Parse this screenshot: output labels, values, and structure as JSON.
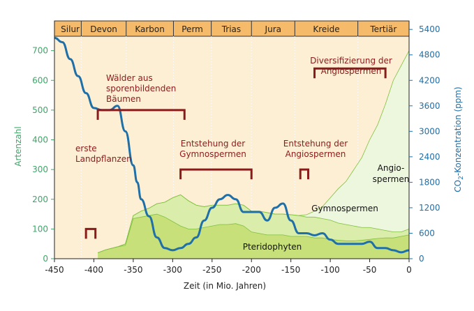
{
  "chart_data": {
    "type": "area",
    "x_axis": {
      "label": "Zeit (in Mio. Jahren)",
      "range": [
        -450,
        0
      ],
      "ticks": [
        -450,
        -400,
        -350,
        -300,
        -250,
        -200,
        -150,
        -100,
        -50,
        0
      ]
    },
    "y_left": {
      "label": "Artenzahl",
      "range": [
        0,
        800
      ],
      "ticks": [
        0,
        100,
        200,
        300,
        400,
        500,
        600,
        700
      ]
    },
    "y_right": {
      "label_main": "CO",
      "label_sub": "2",
      "label_rest": "-Konzentration (ppm)",
      "range": [
        0,
        5600
      ],
      "ticks": [
        0,
        600,
        1200,
        1800,
        2400,
        3000,
        3600,
        4200,
        4800,
        5400
      ]
    },
    "periods": [
      {
        "name": "Silur",
        "start": -444,
        "end": -416
      },
      {
        "name": "Devon",
        "start": -416,
        "end": -359
      },
      {
        "name": "Karbon",
        "start": -359,
        "end": -299
      },
      {
        "name": "Perm",
        "start": -299,
        "end": -251
      },
      {
        "name": "Trias",
        "start": -251,
        "end": -200
      },
      {
        "name": "Jura",
        "start": -200,
        "end": -145
      },
      {
        "name": "Kreide",
        "start": -145,
        "end": -65
      },
      {
        "name": "Tertiär",
        "start": -65,
        "end": 0
      }
    ],
    "series": [
      {
        "name": "Pteridophyten",
        "color": "#c8e07a",
        "x": [
          -395,
          -385,
          -370,
          -360,
          -350,
          -340,
          -330,
          -320,
          -310,
          -300,
          -290,
          -280,
          -270,
          -260,
          -250,
          -240,
          -230,
          -220,
          -210,
          -200,
          -190,
          -180,
          -170,
          -160,
          -150,
          -140,
          -130,
          -120,
          -110,
          -100,
          -90,
          -80,
          -70,
          -60,
          -50,
          -40,
          -30,
          -20,
          -10,
          0
        ],
        "values": [
          20,
          30,
          40,
          45,
          135,
          140,
          145,
          150,
          140,
          125,
          110,
          100,
          100,
          105,
          110,
          115,
          115,
          118,
          110,
          90,
          85,
          80,
          80,
          80,
          75,
          75,
          75,
          70,
          70,
          65,
          62,
          60,
          60,
          62,
          65,
          68,
          70,
          70,
          75,
          80
        ]
      },
      {
        "name": "Gymnospermen",
        "color": "#daedaa",
        "x": [
          -395,
          -385,
          -370,
          -360,
          -350,
          -340,
          -330,
          -320,
          -310,
          -300,
          -290,
          -280,
          -270,
          -260,
          -250,
          -240,
          -230,
          -220,
          -210,
          -200,
          -190,
          -180,
          -170,
          -160,
          -150,
          -140,
          -130,
          -120,
          -110,
          -100,
          -90,
          -80,
          -70,
          -60,
          -50,
          -40,
          -30,
          -20,
          -10,
          0
        ],
        "values": [
          20,
          30,
          40,
          50,
          145,
          160,
          170,
          185,
          190,
          205,
          215,
          195,
          180,
          175,
          180,
          180,
          180,
          185,
          180,
          160,
          160,
          155,
          150,
          150,
          148,
          145,
          140,
          140,
          135,
          130,
          120,
          115,
          110,
          105,
          105,
          100,
          95,
          90,
          90,
          100
        ]
      },
      {
        "name": "Angio-spermen",
        "color": "#edf7dd",
        "x": [
          -395,
          -385,
          -370,
          -360,
          -350,
          -340,
          -330,
          -320,
          -310,
          -300,
          -290,
          -280,
          -270,
          -260,
          -250,
          -240,
          -230,
          -220,
          -210,
          -200,
          -190,
          -180,
          -170,
          -160,
          -150,
          -140,
          -130,
          -120,
          -110,
          -100,
          -90,
          -80,
          -70,
          -60,
          -50,
          -40,
          -30,
          -20,
          -10,
          0
        ],
        "values": [
          20,
          30,
          40,
          50,
          145,
          160,
          170,
          185,
          190,
          205,
          215,
          195,
          180,
          175,
          180,
          180,
          180,
          185,
          180,
          160,
          160,
          155,
          150,
          150,
          148,
          145,
          148,
          160,
          175,
          205,
          235,
          260,
          300,
          340,
          400,
          450,
          520,
          600,
          650,
          700
        ]
      },
      {
        "name": "CO2-Konzentration",
        "axis": "right",
        "color": "#1f6fa8",
        "x": [
          -450,
          -440,
          -430,
          -420,
          -410,
          -400,
          -390,
          -380,
          -370,
          -360,
          -350,
          -345,
          -340,
          -330,
          -320,
          -310,
          -300,
          -290,
          -280,
          -270,
          -260,
          -250,
          -240,
          -230,
          -220,
          -210,
          -200,
          -190,
          -180,
          -170,
          -160,
          -150,
          -140,
          -130,
          -120,
          -110,
          -100,
          -90,
          -80,
          -70,
          -60,
          -50,
          -40,
          -30,
          -20,
          -10,
          0
        ],
        "values": [
          5200,
          5100,
          4700,
          4300,
          3900,
          3550,
          3500,
          3500,
          3600,
          3000,
          2200,
          1800,
          1400,
          1000,
          500,
          250,
          200,
          250,
          350,
          500,
          900,
          1200,
          1400,
          1500,
          1400,
          1100,
          1100,
          1100,
          900,
          1200,
          1300,
          900,
          600,
          600,
          550,
          600,
          450,
          350,
          350,
          350,
          350,
          400,
          250,
          250,
          200,
          150,
          200
        ]
      }
    ],
    "annotations": [
      {
        "text": "erste Landpflanzen",
        "lines": [
          "erste",
          "Landpflanzen"
        ],
        "x_start": -410,
        "x_end": -398,
        "y": 100
      },
      {
        "text": "Wälder aus sporenbildenden Bäumen",
        "lines": [
          "Wälder aus",
          "sporenbildenden",
          "Bäumen"
        ],
        "x_start": -395,
        "x_end": -285,
        "y": 500
      },
      {
        "text": "Entstehung der Gymnospermen",
        "lines": [
          "Entstehung der",
          "Gymnospermen"
        ],
        "x_start": -290,
        "x_end": -200,
        "y": 300
      },
      {
        "text": "Entstehung der Angiospermen",
        "lines": [
          "Entstehung der",
          "Angiospermen"
        ],
        "x_start": -138,
        "x_end": -128,
        "y": 300
      },
      {
        "text": "Diversifizierung der Angiospermen",
        "lines": [
          "Diversifizierung der",
          "Angiospermen"
        ],
        "x_start": -120,
        "x_end": -30,
        "y": 640
      }
    ],
    "area_labels": [
      {
        "text": "Pteridophyten",
        "lines": [
          "Pteridophyten"
        ]
      },
      {
        "text": "Gymnospermen",
        "lines": [
          "Gymnospermen"
        ]
      },
      {
        "text": "Angio- spermen",
        "lines": [
          "Angio-",
          "spermen"
        ]
      }
    ],
    "colors": {
      "period_bar": "#f5bb6a",
      "background": "#fdefd4",
      "annotation_text": "#8b1a1a",
      "bracket": "#8b1a1a",
      "left_axis": "#3aa867",
      "right_axis": "#1f6fa8"
    }
  }
}
